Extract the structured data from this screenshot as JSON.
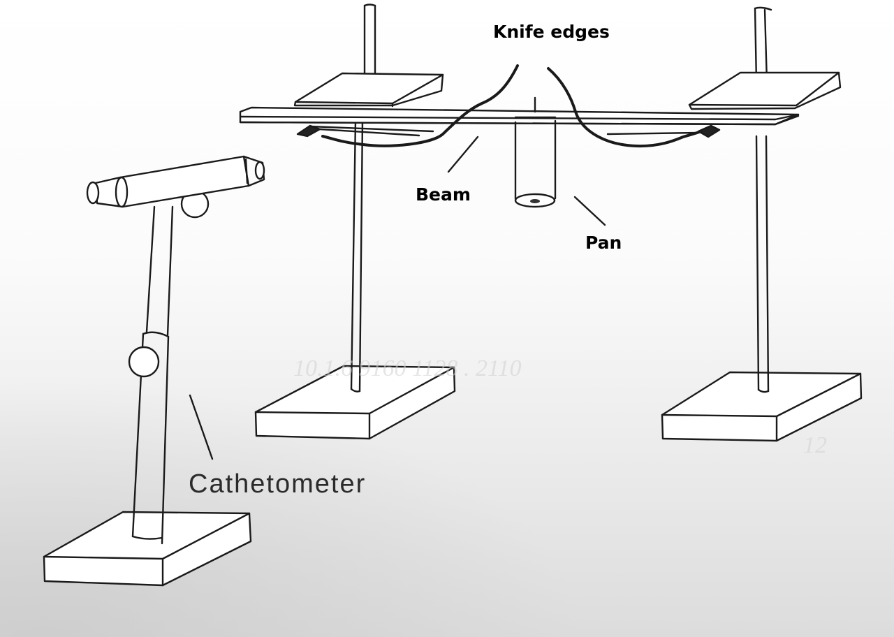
{
  "diagram": {
    "labels": {
      "knife_edges": "Knife edges",
      "beam": "Beam",
      "pan": "Pan",
      "cathetometer": "Cathetometer"
    },
    "colors": {
      "ink": "#1a1a1a",
      "paper": "#ffffff",
      "shadow": "#d9d9d9"
    }
  }
}
